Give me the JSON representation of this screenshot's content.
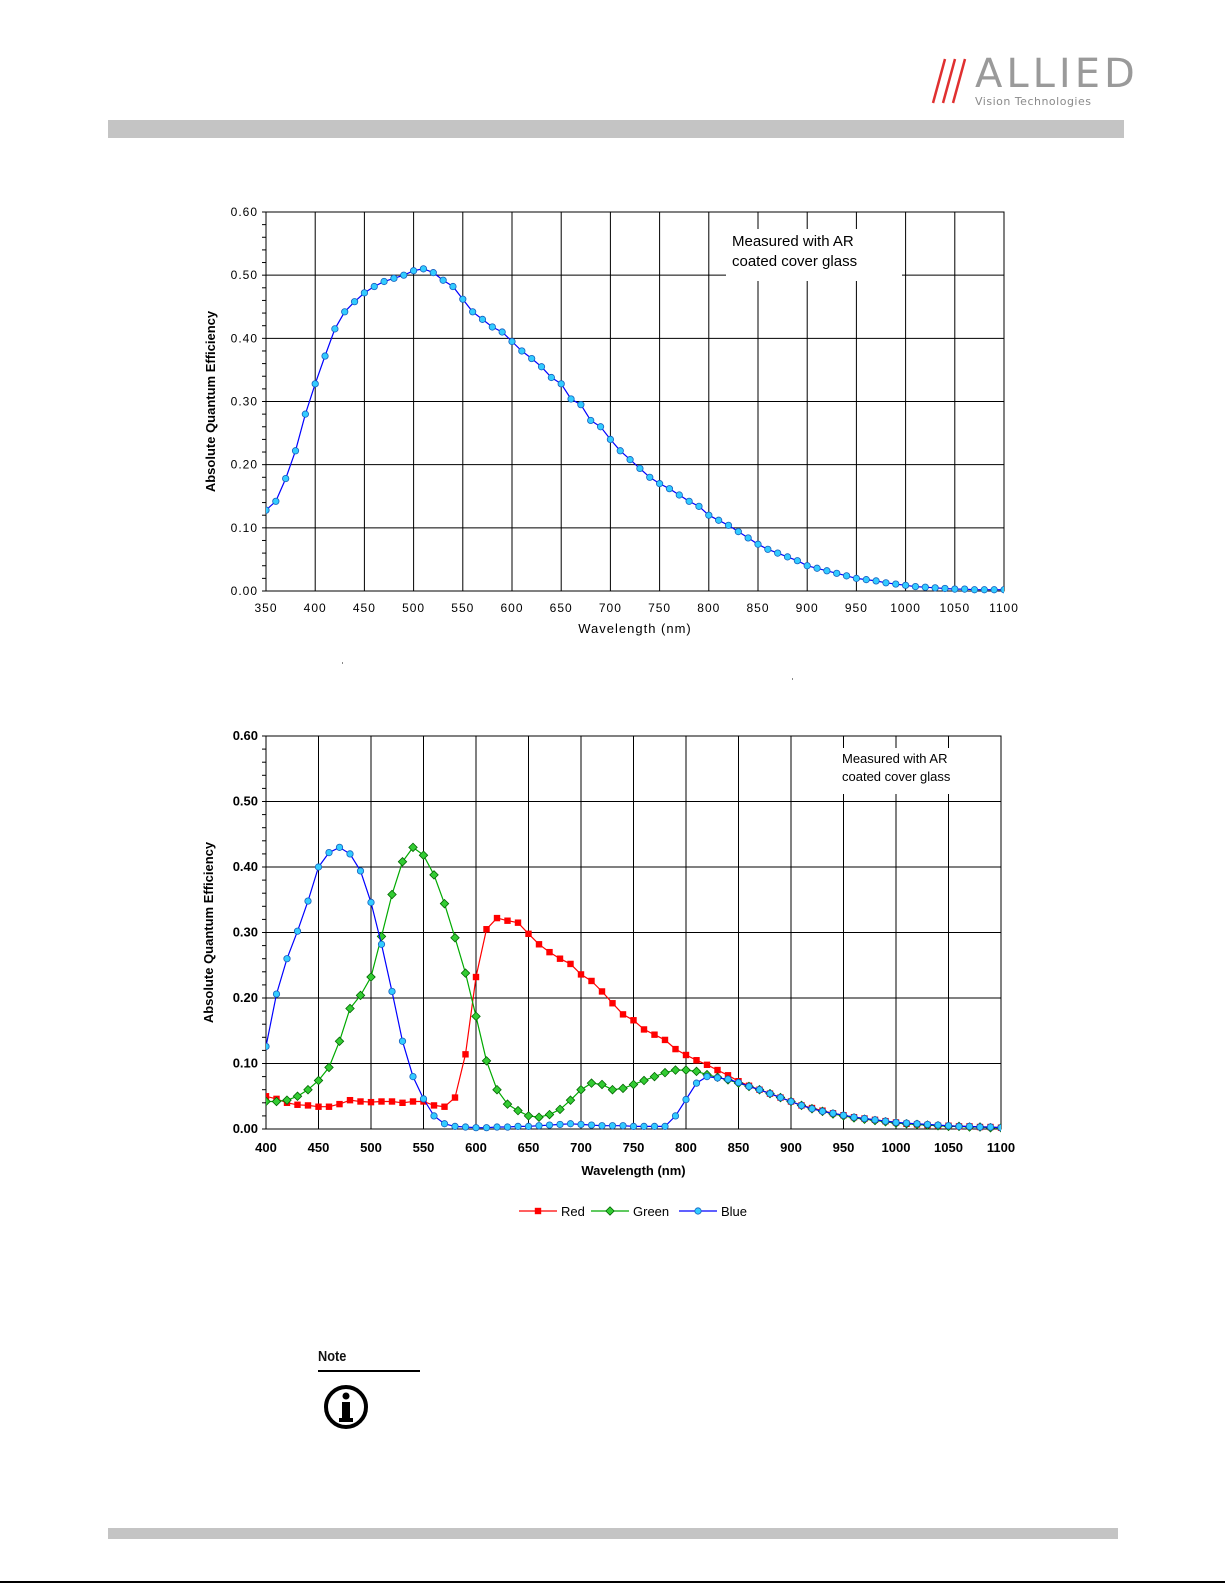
{
  "header": {
    "brand": "ALLIED",
    "brand_sub": "Vision Technologies"
  },
  "note": {
    "label": "Note"
  },
  "colors": {
    "bar": "#c4c4c4",
    "mono_line": "#0000ff",
    "mono_marker": "#33ccff",
    "red": "#ff0000",
    "green": "#00aa00",
    "green_marker": "#33cc33",
    "blue_marker": "#33ccff"
  },
  "chart_data": [
    {
      "type": "line",
      "xlabel": "Wavelength (nm)",
      "ylabel": "Absolute Quantum Efficiency",
      "xlim": [
        350,
        1100
      ],
      "ylim": [
        0,
        0.6
      ],
      "xticks": [
        "350",
        "400",
        "450",
        "500",
        "550",
        "600",
        "650",
        "700",
        "750",
        "800",
        "850",
        "900",
        "950",
        "1000",
        "1050",
        "1100"
      ],
      "yticks": [
        "0.00",
        "0.10",
        "0.20",
        "0.30",
        "0.40",
        "0.50",
        "0.60"
      ],
      "grid": true,
      "annotation": [
        "Measured with AR",
        "coated cover glass"
      ],
      "series": [
        {
          "x": [
            350,
            360,
            370,
            380,
            390,
            400,
            410,
            420,
            430,
            440,
            450,
            460,
            470,
            480,
            490,
            500,
            510,
            520,
            530,
            540,
            550,
            560,
            570,
            580,
            590,
            600,
            610,
            620,
            630,
            640,
            650,
            660,
            670,
            680,
            690,
            700,
            710,
            720,
            730,
            740,
            750,
            760,
            770,
            780,
            790,
            800,
            810,
            820,
            830,
            840,
            850,
            860,
            870,
            880,
            890,
            900,
            910,
            920,
            930,
            940,
            950,
            960,
            970,
            980,
            990,
            1000,
            1010,
            1020,
            1030,
            1040,
            1050,
            1060,
            1070,
            1080,
            1090,
            1100
          ],
          "y": [
            0.128,
            0.142,
            0.178,
            0.222,
            0.28,
            0.328,
            0.372,
            0.415,
            0.442,
            0.458,
            0.472,
            0.482,
            0.49,
            0.495,
            0.5,
            0.507,
            0.51,
            0.504,
            0.492,
            0.482,
            0.462,
            0.442,
            0.43,
            0.418,
            0.41,
            0.395,
            0.38,
            0.368,
            0.355,
            0.338,
            0.328,
            0.304,
            0.295,
            0.27,
            0.26,
            0.24,
            0.222,
            0.208,
            0.194,
            0.18,
            0.17,
            0.162,
            0.152,
            0.142,
            0.134,
            0.12,
            0.112,
            0.104,
            0.094,
            0.084,
            0.074,
            0.066,
            0.06,
            0.054,
            0.048,
            0.04,
            0.036,
            0.032,
            0.028,
            0.024,
            0.02,
            0.018,
            0.016,
            0.013,
            0.011,
            0.009,
            0.007,
            0.006,
            0.005,
            0.004,
            0.003,
            0.003,
            0.002,
            0.002,
            0.002,
            0.002
          ]
        }
      ]
    },
    {
      "type": "line",
      "xlabel": "Wavelength (nm)",
      "ylabel": "Absolute Quantum Efficiency",
      "xlim": [
        400,
        1100
      ],
      "ylim": [
        0,
        0.6
      ],
      "xticks": [
        "400",
        "450",
        "500",
        "550",
        "600",
        "650",
        "700",
        "750",
        "800",
        "850",
        "900",
        "950",
        "1000",
        "1050",
        "1100"
      ],
      "yticks": [
        "0.00",
        "0.10",
        "0.20",
        "0.30",
        "0.40",
        "0.50",
        "0.60"
      ],
      "grid": true,
      "legend": "bottom",
      "annotation": [
        "Measured with AR",
        "coated cover glass"
      ],
      "x": [
        400,
        410,
        420,
        430,
        440,
        450,
        460,
        470,
        480,
        490,
        500,
        510,
        520,
        530,
        540,
        550,
        560,
        570,
        580,
        590,
        600,
        610,
        620,
        630,
        640,
        650,
        660,
        670,
        680,
        690,
        700,
        710,
        720,
        730,
        740,
        750,
        760,
        770,
        780,
        790,
        800,
        810,
        820,
        830,
        840,
        850,
        860,
        870,
        880,
        890,
        900,
        910,
        920,
        930,
        940,
        950,
        960,
        970,
        980,
        990,
        1000,
        1010,
        1020,
        1030,
        1040,
        1050,
        1060,
        1070,
        1080,
        1090,
        1100
      ],
      "series": [
        {
          "name": "Red",
          "y": [
            0.05,
            0.046,
            0.04,
            0.037,
            0.036,
            0.034,
            0.034,
            0.038,
            0.044,
            0.042,
            0.041,
            0.042,
            0.042,
            0.04,
            0.042,
            0.042,
            0.036,
            0.034,
            0.048,
            0.114,
            0.232,
            0.305,
            0.322,
            0.318,
            0.315,
            0.298,
            0.282,
            0.27,
            0.26,
            0.252,
            0.236,
            0.226,
            0.21,
            0.192,
            0.175,
            0.166,
            0.152,
            0.144,
            0.136,
            0.122,
            0.113,
            0.105,
            0.098,
            0.09,
            0.082,
            0.073,
            0.066,
            0.06,
            0.054,
            0.048,
            0.042,
            0.036,
            0.032,
            0.028,
            0.024,
            0.021,
            0.018,
            0.016,
            0.014,
            0.012,
            0.01,
            0.008,
            0.007,
            0.006,
            0.005,
            0.005,
            0.004,
            0.004,
            0.003,
            0.003,
            0.002
          ]
        },
        {
          "name": "Green",
          "y": [
            0.042,
            0.042,
            0.044,
            0.05,
            0.06,
            0.074,
            0.094,
            0.134,
            0.184,
            0.204,
            0.232,
            0.294,
            0.358,
            0.408,
            0.43,
            0.418,
            0.388,
            0.344,
            0.292,
            0.238,
            0.172,
            0.104,
            0.06,
            0.038,
            0.028,
            0.02,
            0.018,
            0.022,
            0.03,
            0.044,
            0.06,
            0.07,
            0.068,
            0.06,
            0.062,
            0.068,
            0.074,
            0.08,
            0.086,
            0.09,
            0.09,
            0.088,
            0.083,
            0.079,
            0.075,
            0.07,
            0.065,
            0.06,
            0.054,
            0.048,
            0.042,
            0.036,
            0.031,
            0.027,
            0.023,
            0.02,
            0.017,
            0.015,
            0.013,
            0.011,
            0.009,
            0.008,
            0.007,
            0.006,
            0.005,
            0.004,
            0.004,
            0.003,
            0.003,
            0.002,
            0.002
          ]
        },
        {
          "name": "Blue",
          "y": [
            0.126,
            0.206,
            0.26,
            0.302,
            0.348,
            0.4,
            0.422,
            0.43,
            0.42,
            0.394,
            0.346,
            0.282,
            0.21,
            0.134,
            0.08,
            0.046,
            0.02,
            0.008,
            0.004,
            0.003,
            0.002,
            0.002,
            0.003,
            0.003,
            0.004,
            0.004,
            0.005,
            0.006,
            0.007,
            0.008,
            0.007,
            0.006,
            0.005,
            0.005,
            0.005,
            0.004,
            0.004,
            0.004,
            0.004,
            0.02,
            0.045,
            0.07,
            0.08,
            0.078,
            0.076,
            0.071,
            0.065,
            0.06,
            0.054,
            0.048,
            0.042,
            0.036,
            0.031,
            0.027,
            0.024,
            0.021,
            0.018,
            0.016,
            0.014,
            0.012,
            0.01,
            0.009,
            0.008,
            0.007,
            0.006,
            0.005,
            0.004,
            0.004,
            0.003,
            0.003,
            0.002
          ]
        }
      ]
    }
  ]
}
